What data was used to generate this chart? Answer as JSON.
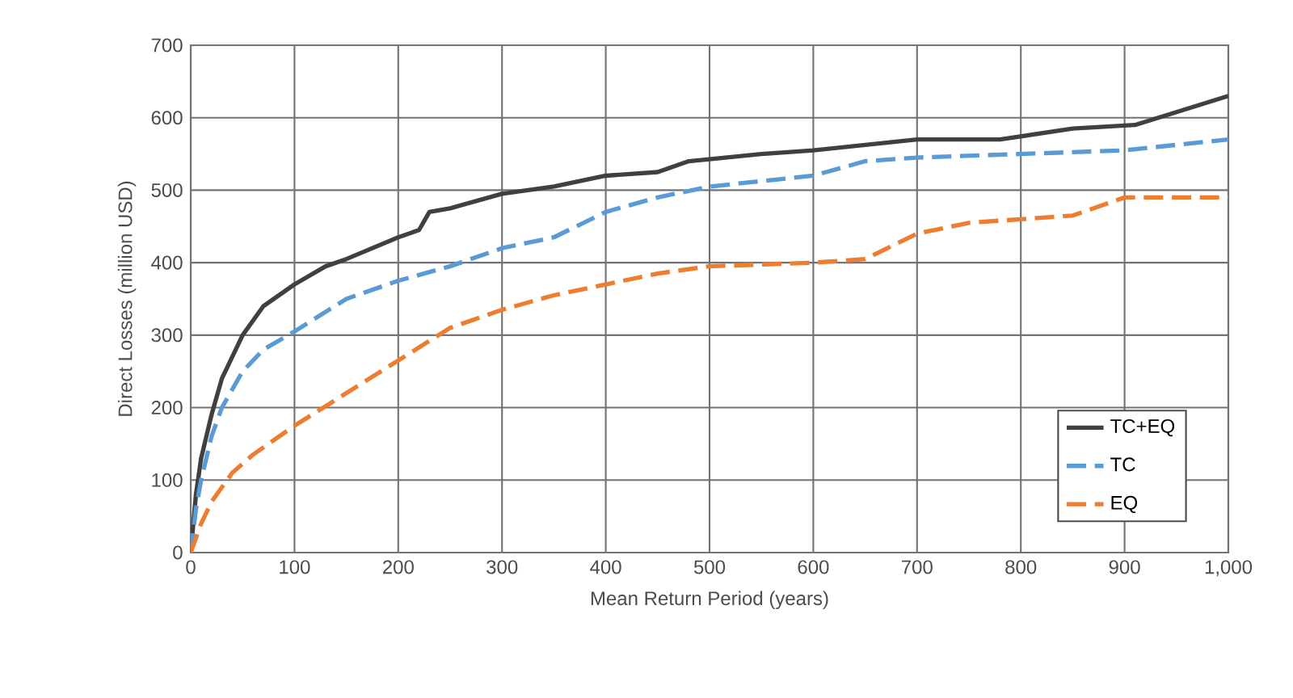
{
  "chart_data": {
    "type": "line",
    "xlabel": "Mean Return Period (years)",
    "ylabel": "Direct Losses (million USD)",
    "xlim": [
      0,
      1000
    ],
    "ylim": [
      0,
      700
    ],
    "xticks": [
      0,
      100,
      200,
      300,
      400,
      500,
      600,
      700,
      800,
      900,
      {
        "value": 1000,
        "label": "1,000"
      }
    ],
    "yticks": [
      0,
      100,
      200,
      300,
      400,
      500,
      600,
      700
    ],
    "grid": true,
    "legend": "bottom right",
    "series": [
      {
        "name": "TC+EQ",
        "color": "#404040",
        "line_style": "solid",
        "x": [
          0,
          5,
          10,
          20,
          30,
          50,
          70,
          100,
          130,
          150,
          200,
          220,
          230,
          250,
          300,
          350,
          400,
          450,
          480,
          550,
          600,
          700,
          780,
          850,
          910,
          1000
        ],
        "values": [
          0,
          80,
          130,
          190,
          240,
          300,
          340,
          370,
          395,
          405,
          435,
          445,
          470,
          475,
          495,
          505,
          520,
          525,
          540,
          550,
          555,
          570,
          570,
          585,
          590,
          630
        ]
      },
      {
        "name": "TC",
        "color": "#5b9bd5",
        "line_style": "dashed",
        "x": [
          0,
          5,
          10,
          20,
          30,
          50,
          70,
          100,
          150,
          200,
          250,
          300,
          350,
          400,
          450,
          500,
          600,
          650,
          700,
          800,
          900,
          1000
        ],
        "values": [
          0,
          60,
          100,
          160,
          200,
          250,
          280,
          305,
          350,
          375,
          395,
          420,
          435,
          470,
          490,
          505,
          520,
          540,
          545,
          550,
          555,
          570
        ]
      },
      {
        "name": "EQ",
        "color": "#ed7d31",
        "line_style": "dashed",
        "x": [
          0,
          10,
          20,
          40,
          60,
          100,
          150,
          200,
          250,
          300,
          350,
          400,
          450,
          500,
          600,
          650,
          700,
          750,
          800,
          850,
          900,
          1000
        ],
        "values": [
          0,
          40,
          70,
          110,
          135,
          175,
          220,
          265,
          310,
          335,
          355,
          370,
          385,
          395,
          400,
          405,
          440,
          455,
          460,
          465,
          490,
          490
        ]
      }
    ]
  }
}
